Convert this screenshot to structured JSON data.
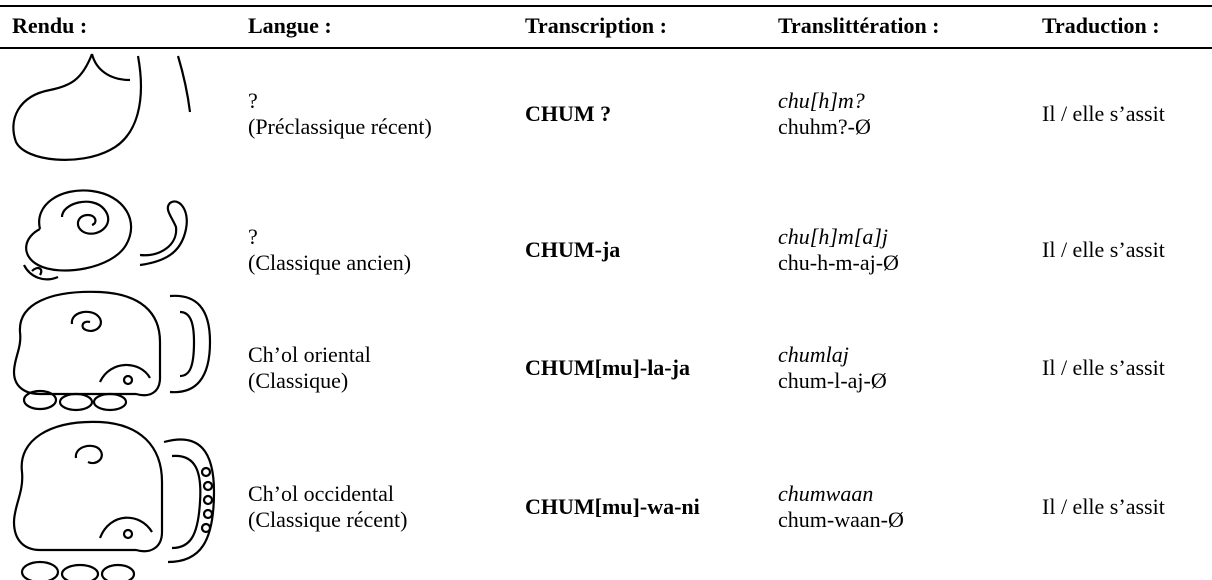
{
  "table": {
    "headers": [
      "Rendu :",
      "Langue :",
      "Transcription :",
      "Translittération :",
      "Traduction :"
    ],
    "rows": [
      {
        "language": [
          "?",
          "(Préclassique récent)"
        ],
        "transcription": "CHUM ?",
        "transliteration": [
          "chu[h]m?",
          "chuhm?-Ø"
        ],
        "translation": "Il / elle s’assit"
      },
      {
        "language": [
          "?",
          "(Classique ancien)"
        ],
        "transcription": "CHUM-ja",
        "transliteration": [
          "chu[h]m[a]j",
          "chu-h-m-aj-Ø"
        ],
        "translation": "Il / elle s’assit"
      },
      {
        "language": [
          "Ch’ol oriental",
          "(Classique)"
        ],
        "transcription": "CHUM[mu]-la-ja",
        "transliteration": [
          "chumlaj",
          "chum-l-aj-Ø"
        ],
        "translation": "Il / elle s’assit"
      },
      {
        "language": [
          "Ch’ol occidental",
          "(Classique récent)"
        ],
        "transcription": "CHUM[mu]-wa-ni",
        "transliteration": [
          "chumwaan",
          "chum-waan-Ø"
        ],
        "translation": "Il / elle s’assit"
      }
    ]
  }
}
